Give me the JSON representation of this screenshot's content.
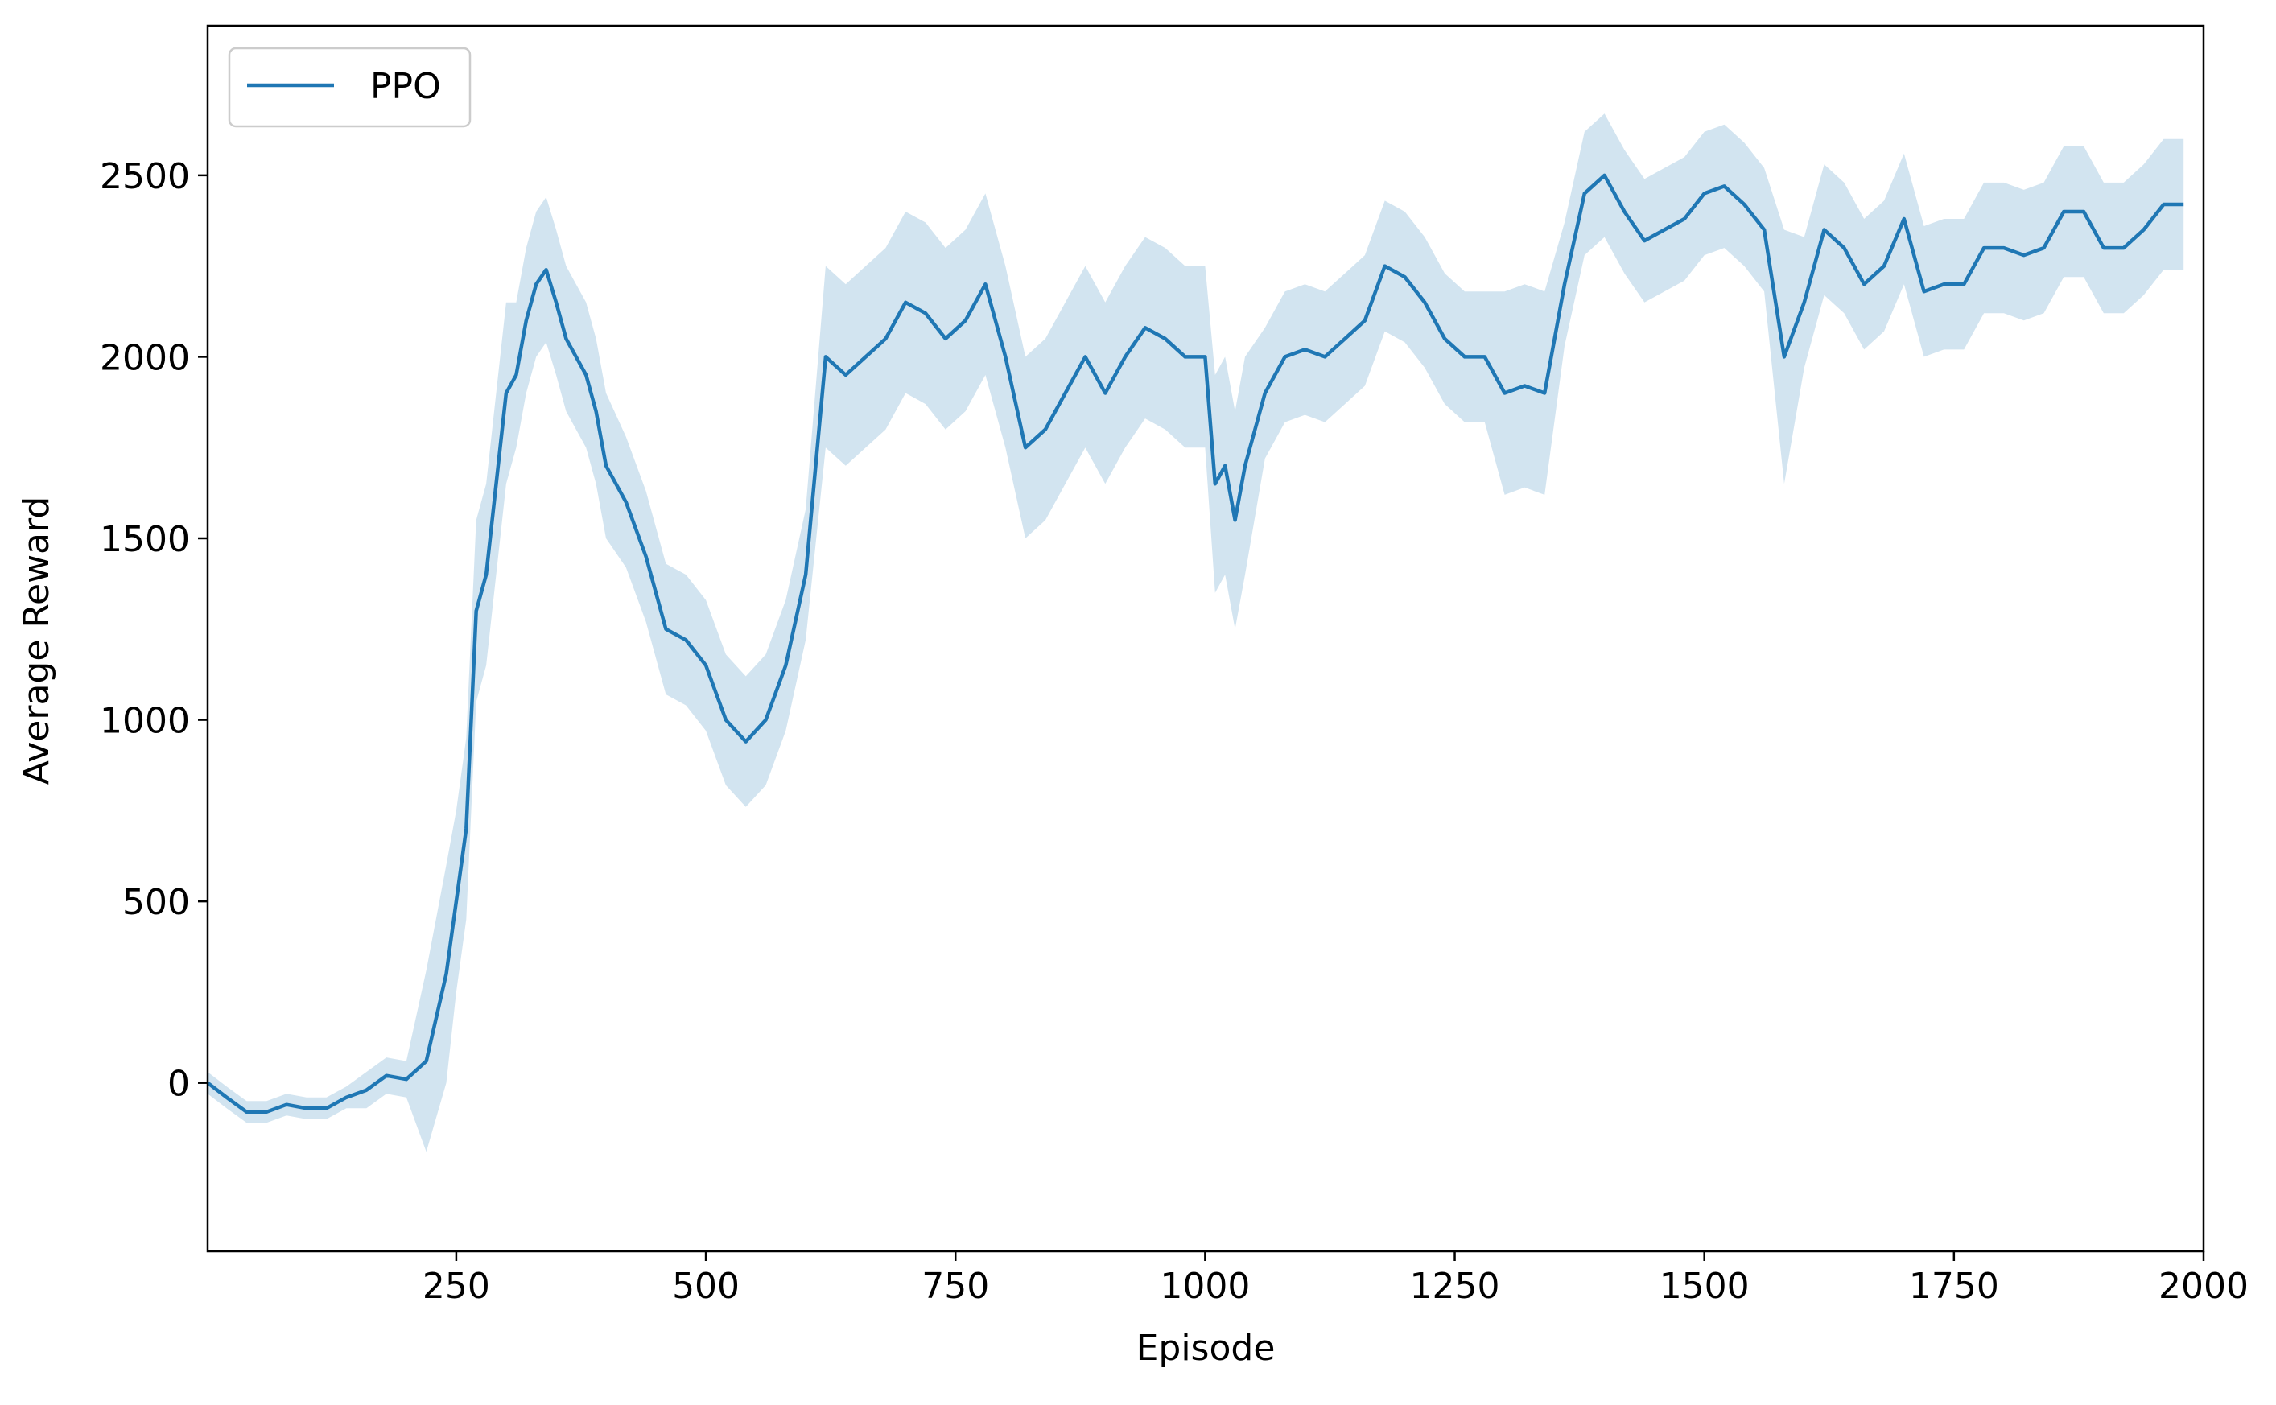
{
  "chart_data": {
    "type": "line",
    "xlabel": "Episode",
    "ylabel": "Average Reward",
    "x": [
      1,
      20,
      40,
      60,
      80,
      100,
      120,
      140,
      160,
      180,
      200,
      220,
      240,
      250,
      260,
      270,
      280,
      290,
      300,
      310,
      320,
      330,
      340,
      350,
      360,
      370,
      380,
      390,
      400,
      420,
      440,
      460,
      480,
      500,
      520,
      540,
      560,
      580,
      600,
      620,
      640,
      660,
      680,
      700,
      720,
      740,
      760,
      780,
      800,
      820,
      840,
      860,
      880,
      900,
      920,
      940,
      960,
      980,
      1000,
      1010,
      1020,
      1030,
      1040,
      1060,
      1080,
      1100,
      1120,
      1140,
      1160,
      1180,
      1200,
      1220,
      1240,
      1260,
      1280,
      1300,
      1320,
      1340,
      1360,
      1380,
      1400,
      1420,
      1440,
      1460,
      1480,
      1500,
      1520,
      1540,
      1560,
      1580,
      1600,
      1620,
      1640,
      1660,
      1680,
      1700,
      1720,
      1740,
      1760,
      1780,
      1800,
      1820,
      1840,
      1860,
      1880,
      1900,
      1920,
      1940,
      1960,
      1980
    ],
    "series": [
      {
        "name": "PPO",
        "color": "#1f77b4",
        "band_color": "#1f77b4",
        "band_opacity": 0.2,
        "values": [
          0,
          -40,
          -80,
          -80,
          -60,
          -70,
          -70,
          -40,
          -20,
          20,
          10,
          60,
          300,
          500,
          700,
          1300,
          1400,
          1650,
          1900,
          1950,
          2100,
          2200,
          2240,
          2150,
          2050,
          2000,
          1950,
          1850,
          1700,
          1600,
          1450,
          1250,
          1220,
          1150,
          1000,
          940,
          1000,
          1150,
          1400,
          2000,
          1950,
          2000,
          2050,
          2150,
          2120,
          2050,
          2100,
          2200,
          2000,
          1750,
          1800,
          1900,
          2000,
          1900,
          2000,
          2080,
          2050,
          2000,
          2000,
          1650,
          1700,
          1550,
          1700,
          1900,
          2000,
          2020,
          2000,
          2050,
          2100,
          2250,
          2220,
          2150,
          2050,
          2000,
          2000,
          1900,
          1920,
          1900,
          2200,
          2450,
          2500,
          2400,
          2320,
          2350,
          2380,
          2450,
          2470,
          2420,
          2350,
          2000,
          2150,
          2350,
          2300,
          2200,
          2250,
          2380,
          2180,
          2200,
          2200,
          2300,
          2300,
          2280,
          2300,
          2400,
          2400,
          2300,
          2300,
          2350,
          2420,
          2420
        ],
        "lower": [
          -30,
          -70,
          -110,
          -110,
          -90,
          -100,
          -100,
          -70,
          -70,
          -30,
          -40,
          -190,
          0,
          250,
          450,
          1050,
          1150,
          1400,
          1650,
          1750,
          1900,
          2000,
          2040,
          1950,
          1850,
          1800,
          1750,
          1650,
          1500,
          1420,
          1270,
          1070,
          1040,
          970,
          820,
          760,
          820,
          970,
          1220,
          1750,
          1700,
          1750,
          1800,
          1900,
          1870,
          1800,
          1850,
          1950,
          1750,
          1500,
          1550,
          1650,
          1750,
          1650,
          1750,
          1830,
          1800,
          1750,
          1750,
          1350,
          1400,
          1250,
          1400,
          1720,
          1820,
          1840,
          1820,
          1870,
          1920,
          2070,
          2040,
          1970,
          1870,
          1820,
          1820,
          1620,
          1640,
          1620,
          2030,
          2280,
          2330,
          2230,
          2150,
          2180,
          2210,
          2280,
          2300,
          2250,
          2180,
          1650,
          1970,
          2170,
          2120,
          2020,
          2070,
          2200,
          2000,
          2020,
          2020,
          2120,
          2120,
          2100,
          2120,
          2220,
          2220,
          2120,
          2120,
          2170,
          2240,
          2240
        ],
        "upper": [
          30,
          -10,
          -50,
          -50,
          -30,
          -40,
          -40,
          -10,
          30,
          70,
          60,
          310,
          600,
          750,
          950,
          1550,
          1650,
          1900,
          2150,
          2150,
          2300,
          2400,
          2440,
          2350,
          2250,
          2200,
          2150,
          2050,
          1900,
          1780,
          1630,
          1430,
          1400,
          1330,
          1180,
          1120,
          1180,
          1330,
          1580,
          2250,
          2200,
          2250,
          2300,
          2400,
          2370,
          2300,
          2350,
          2450,
          2250,
          2000,
          2050,
          2150,
          2250,
          2150,
          2250,
          2330,
          2300,
          2250,
          2250,
          1950,
          2000,
          1850,
          2000,
          2080,
          2180,
          2200,
          2180,
          2230,
          2280,
          2430,
          2400,
          2330,
          2230,
          2180,
          2180,
          2180,
          2200,
          2180,
          2370,
          2620,
          2670,
          2570,
          2490,
          2520,
          2550,
          2620,
          2640,
          2590,
          2520,
          2350,
          2330,
          2530,
          2480,
          2380,
          2430,
          2560,
          2360,
          2380,
          2380,
          2480,
          2480,
          2460,
          2480,
          2580,
          2580,
          2480,
          2480,
          2530,
          2600,
          2600
        ]
      }
    ],
    "xlim": [
      1,
      2000
    ],
    "ylim": [
      -464,
      2912
    ],
    "xticks": [
      250,
      500,
      750,
      1000,
      1250,
      1500,
      1750,
      2000
    ],
    "yticks": [
      0,
      500,
      1000,
      1500,
      2000,
      2500
    ],
    "grid": false,
    "legend": "upper left"
  }
}
